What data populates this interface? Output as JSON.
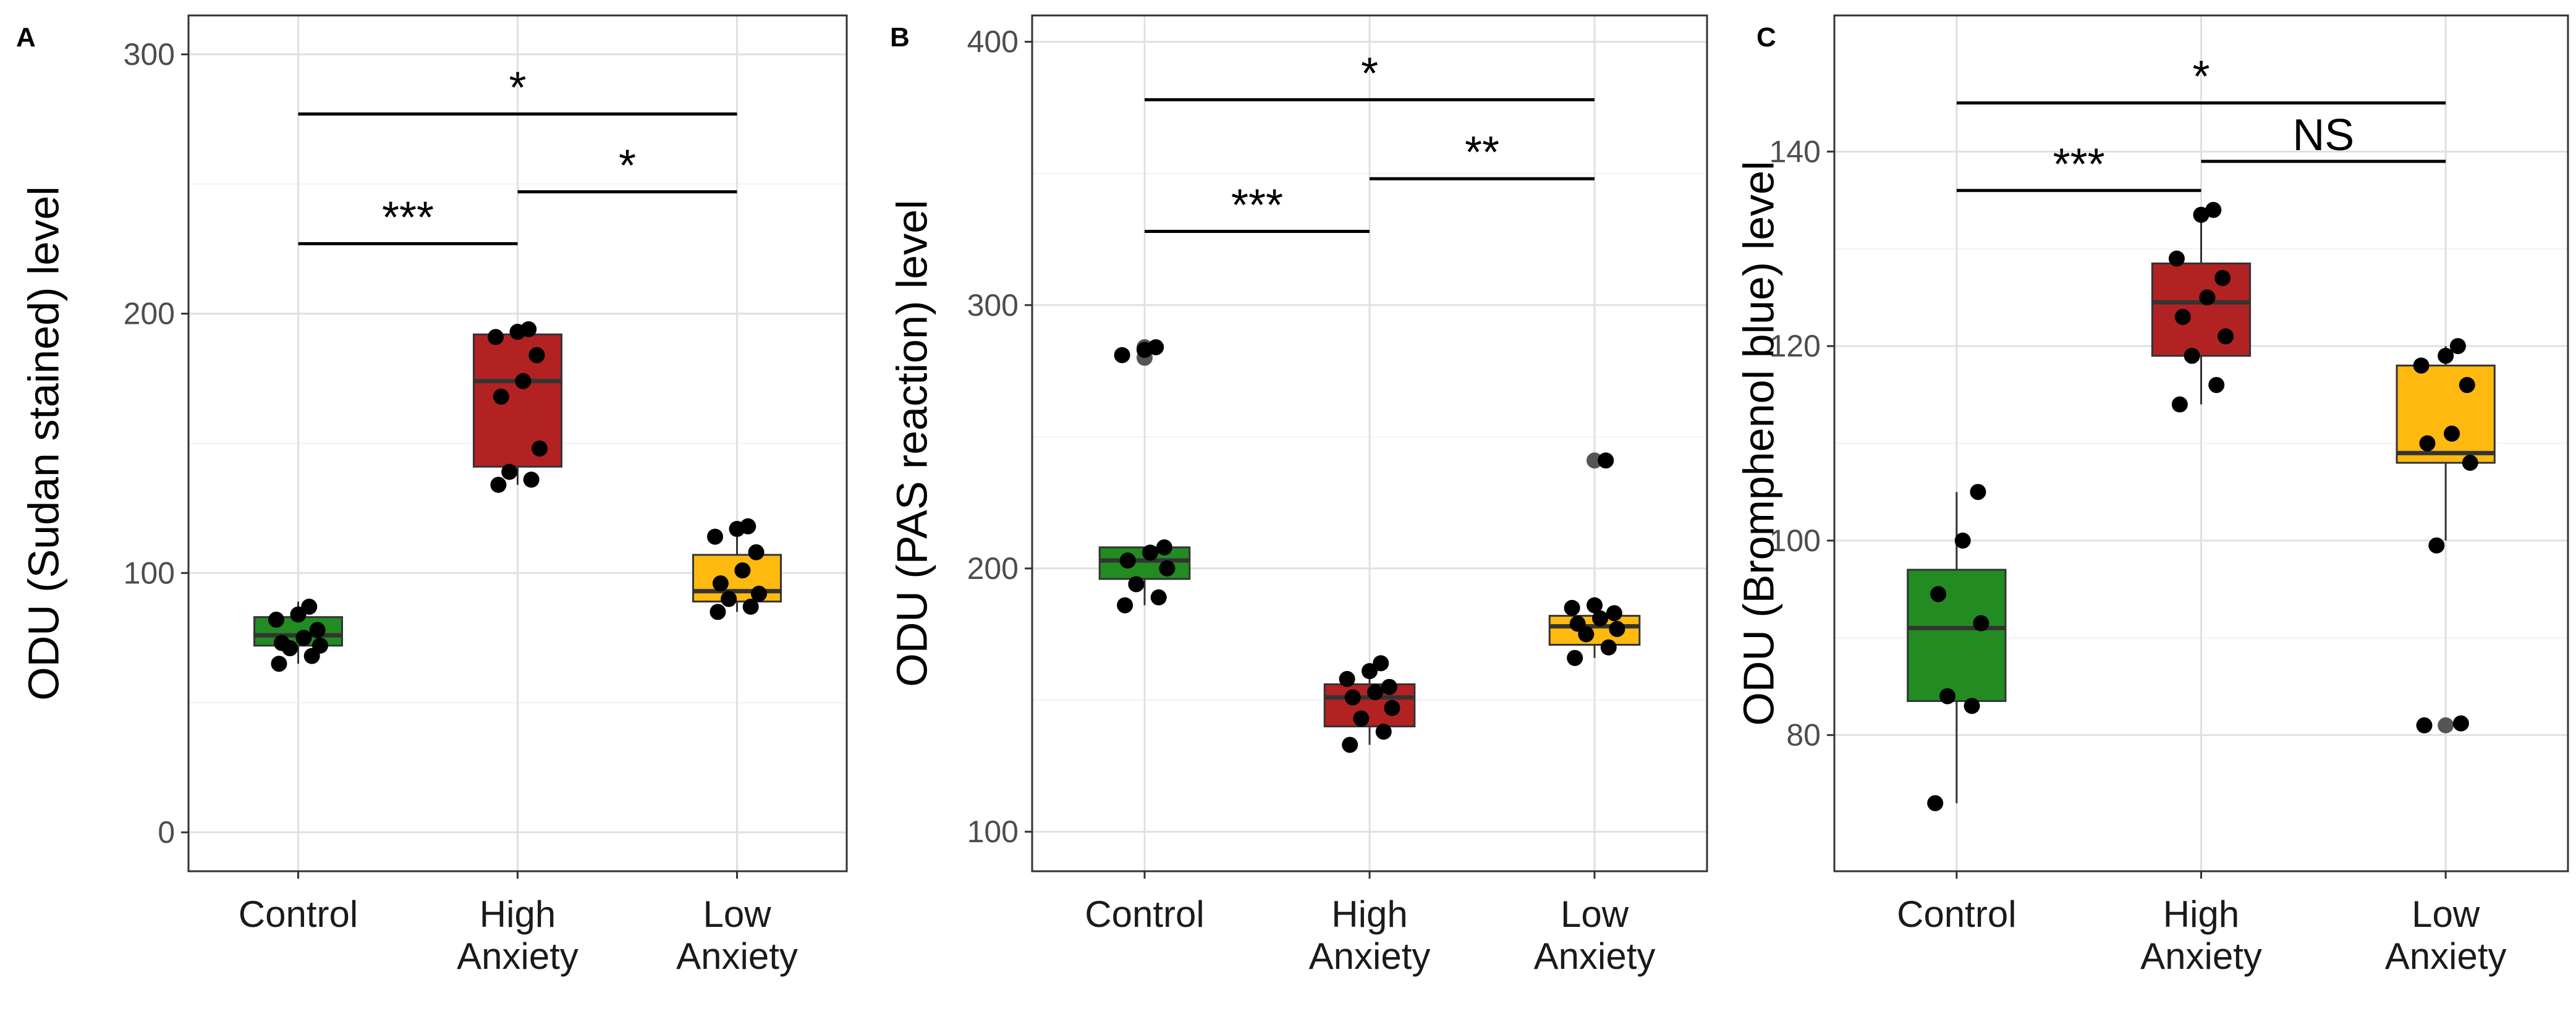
{
  "chart_data": [
    {
      "type": "box",
      "panel": "A",
      "ylabel": "ODU (Sudan stained) level",
      "ylim": [
        -15,
        315
      ],
      "yticks": [
        0,
        100,
        200,
        300
      ],
      "categories": [
        "Control",
        "High\nAnxiety",
        "Low\nAnxiety"
      ],
      "boxes": [
        {
          "name": "Control",
          "color": "#228B22",
          "q1": 72,
          "median": 76,
          "q3": 83,
          "whisker_low": 65,
          "whisker_high": 89,
          "points": [
            65,
            68,
            71,
            72,
            73,
            75,
            78,
            82,
            84,
            87
          ]
        },
        {
          "name": "High Anxiety",
          "color": "#B22222",
          "q1": 141,
          "median": 174,
          "q3": 192,
          "whisker_low": 134,
          "whisker_high": 195,
          "points": [
            134,
            136,
            139,
            148,
            168,
            174,
            184,
            191,
            193,
            194
          ]
        },
        {
          "name": "Low Anxiety",
          "color": "#FFB90F",
          "q1": 89,
          "median": 93,
          "q3": 107,
          "whisker_low": 85,
          "whisker_high": 118,
          "points": [
            85,
            87,
            90,
            92,
            96,
            101,
            108,
            114,
            117,
            118
          ]
        }
      ],
      "comparisons": [
        {
          "from": 0,
          "to": 1,
          "y": 227,
          "label": "***"
        },
        {
          "from": 1,
          "to": 2,
          "y": 247,
          "label": "*"
        },
        {
          "from": 0,
          "to": 2,
          "y": 277,
          "label": "*"
        }
      ]
    },
    {
      "type": "box",
      "panel": "B",
      "ylabel": "ODU (PAS reaction) level",
      "ylim": [
        85,
        410
      ],
      "yticks": [
        100,
        200,
        300,
        400
      ],
      "categories": [
        "Control",
        "High\nAnxiety",
        "Low\nAnxiety"
      ],
      "boxes": [
        {
          "name": "Control",
          "color": "#228B22",
          "q1": 196,
          "median": 203,
          "q3": 208,
          "whisker_low": 186,
          "whisker_high": 208,
          "outliers": [
            280,
            283,
            284
          ],
          "points": [
            186,
            189,
            194,
            200,
            203,
            206,
            208,
            281,
            283,
            284
          ]
        },
        {
          "name": "High Anxiety",
          "color": "#B22222",
          "q1": 140,
          "median": 151,
          "q3": 156,
          "whisker_low": 133,
          "whisker_high": 164,
          "points": [
            133,
            138,
            143,
            147,
            151,
            153,
            155,
            158,
            161,
            164
          ]
        },
        {
          "name": "Low Anxiety",
          "color": "#FFB90F",
          "q1": 171,
          "median": 178,
          "q3": 182,
          "whisker_low": 166,
          "whisker_high": 186,
          "outliers": [
            241
          ],
          "points": [
            166,
            170,
            175,
            177,
            179,
            181,
            183,
            185,
            186,
            241
          ]
        }
      ],
      "comparisons": [
        {
          "from": 0,
          "to": 1,
          "y": 328,
          "label": "***"
        },
        {
          "from": 1,
          "to": 2,
          "y": 348,
          "label": "**"
        },
        {
          "from": 0,
          "to": 2,
          "y": 378,
          "label": "*"
        }
      ]
    },
    {
      "type": "box",
      "panel": "C",
      "ylabel": "ODU (Bromphenol blue) level",
      "ylim": [
        66,
        154
      ],
      "yticks": [
        80,
        100,
        120,
        140
      ],
      "categories": [
        "Control",
        "High\nAnxiety",
        "Low\nAnxiety"
      ],
      "boxes": [
        {
          "name": "Control",
          "color": "#228B22",
          "q1": 83.5,
          "median": 91,
          "q3": 97,
          "whisker_low": 73,
          "whisker_high": 105,
          "points": [
            73,
            83,
            84,
            91.5,
            94.5,
            100,
            105
          ]
        },
        {
          "name": "High Anxiety",
          "color": "#B22222",
          "q1": 119,
          "median": 124.5,
          "q3": 128.5,
          "whisker_low": 114,
          "whisker_high": 134,
          "points": [
            114,
            116,
            119,
            121,
            123,
            125,
            127,
            129,
            133.5,
            134
          ]
        },
        {
          "name": "Low Anxiety",
          "color": "#FFB90F",
          "q1": 108,
          "median": 109,
          "q3": 118,
          "whisker_low": 100,
          "whisker_high": 120,
          "outliers": [
            81
          ],
          "points": [
            81,
            81.2,
            99.5,
            108,
            110,
            111,
            116,
            118,
            119,
            120
          ]
        }
      ],
      "comparisons": [
        {
          "from": 0,
          "to": 1,
          "y": 136,
          "label": "***"
        },
        {
          "from": 1,
          "to": 2,
          "y": 139,
          "label": "NS"
        },
        {
          "from": 0,
          "to": 2,
          "y": 145,
          "label": "*"
        }
      ]
    }
  ]
}
